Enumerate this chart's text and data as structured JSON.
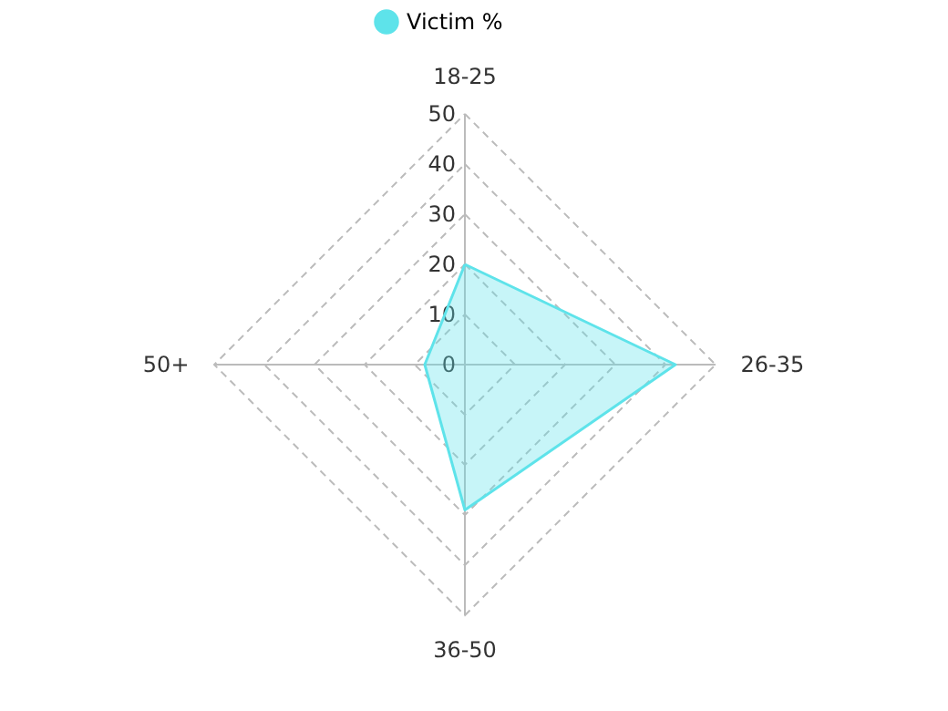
{
  "chart_data": {
    "type": "radar",
    "categories": [
      "18-25",
      "26-35",
      "36-50",
      "50+"
    ],
    "series": [
      {
        "name": "Victim %",
        "color": "#5ee3ea",
        "values": [
          20,
          42,
          29,
          8
        ]
      }
    ],
    "ylim": [
      0,
      50
    ],
    "yticks": [
      0,
      10,
      20,
      30,
      40,
      50
    ],
    "grid": true,
    "legend": "top"
  }
}
